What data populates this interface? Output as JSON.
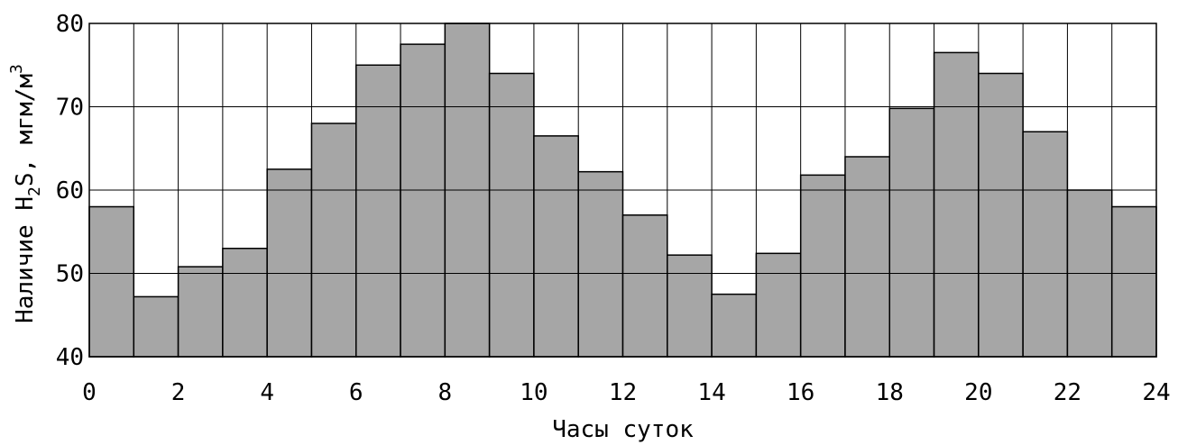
{
  "chart_data": {
    "type": "bar",
    "title": "",
    "xlabel": "Часы суток",
    "ylabel": "Наличие H2S, мгм/м3",
    "ylabel_parts": {
      "pre": "Наличие H",
      "sub": "2",
      "mid": "S, мгм/м",
      "sup": "3"
    },
    "xlim": [
      0,
      24
    ],
    "ylim": [
      40,
      80
    ],
    "x_ticks": [
      "0",
      "2",
      "4",
      "6",
      "8",
      "10",
      "12",
      "14",
      "16",
      "18",
      "20",
      "22",
      "24"
    ],
    "y_ticks": [
      "40",
      "50",
      "60",
      "70",
      "80"
    ],
    "grid": true,
    "hours": [
      0,
      1,
      2,
      3,
      4,
      5,
      6,
      7,
      8,
      9,
      10,
      11,
      12,
      13,
      14,
      15,
      16,
      17,
      18,
      19,
      20,
      21,
      22,
      23
    ],
    "values": [
      58,
      47.2,
      50.8,
      53,
      62.5,
      68,
      75,
      77.5,
      80,
      74,
      66.5,
      62.2,
      57,
      52.2,
      47.5,
      52.4,
      61.8,
      64,
      69.8,
      76.5,
      74,
      67,
      60,
      58
    ]
  }
}
